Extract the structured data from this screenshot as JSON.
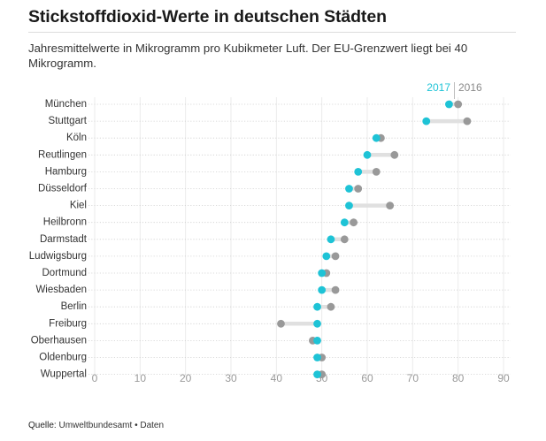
{
  "title": "Stickstoffdioxid-Werte in deutschen Städten",
  "subtitle": "Jahresmittelwerte in Mikrogramm pro Kubikmeter Luft. Der EU-Grenzwert liegt bei 40 Mikrogramm.",
  "footer": {
    "source_label": "Quelle:",
    "source": "Umweltbundesamt",
    "separator": "•",
    "data_link": "Daten"
  },
  "colors": {
    "series_2017": "#1ec3d6",
    "series_2016": "#999999",
    "connector": "#e0e0e0"
  },
  "chart_data": {
    "type": "dot",
    "categories": [
      "München",
      "Stuttgart",
      "Köln",
      "Reutlingen",
      "Hamburg",
      "Düsseldorf",
      "Kiel",
      "Heilbronn",
      "Darmstadt",
      "Ludwigsburg",
      "Dortmund",
      "Wiesbaden",
      "Berlin",
      "Freiburg",
      "Oberhausen",
      "Oldenburg",
      "Wuppertal"
    ],
    "series": [
      {
        "name": "2017",
        "values": [
          78,
          73,
          62,
          60,
          58,
          56,
          56,
          55,
          52,
          51,
          50,
          50,
          49,
          49,
          49,
          49,
          49
        ]
      },
      {
        "name": "2016",
        "values": [
          80,
          82,
          63,
          66,
          62,
          58,
          65,
          57,
          55,
          53,
          51,
          53,
          52,
          41,
          48,
          50,
          50
        ]
      }
    ],
    "x_ticks": [
      0,
      10,
      20,
      30,
      40,
      50,
      60,
      70,
      80,
      90
    ],
    "xlim": [
      0,
      90
    ],
    "legend_position": "top-right",
    "grid": true
  }
}
